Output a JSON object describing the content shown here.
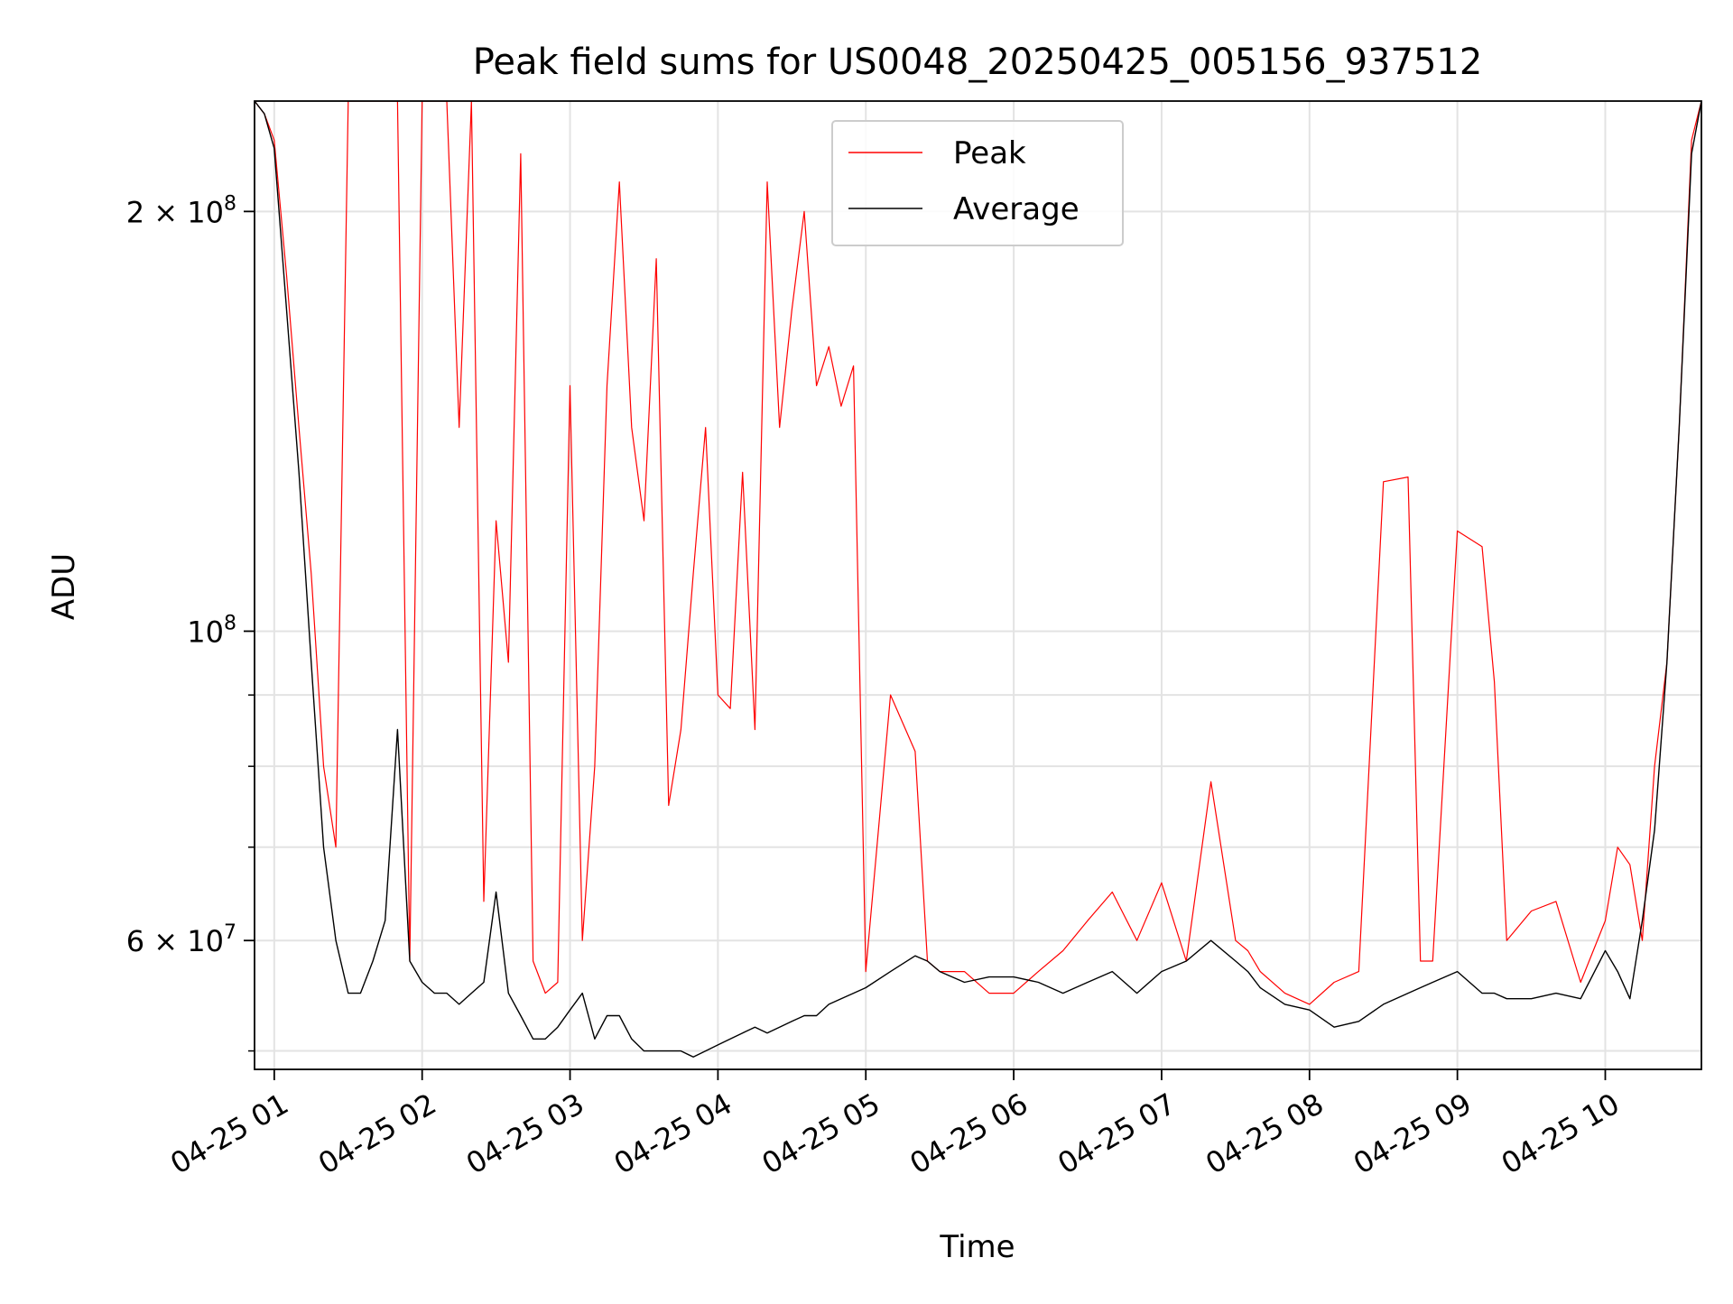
{
  "chart_data": {
    "type": "line",
    "title": "Peak field sums for US0048_20250425_005156_937512",
    "xlabel": "Time",
    "ylabel": "ADU",
    "x_ticks": [
      "04-25 01",
      "04-25 02",
      "04-25 03",
      "04-25 04",
      "04-25 05",
      "04-25 06",
      "04-25 07",
      "04-25 08",
      "04-25 09",
      "04-25 10"
    ],
    "y_scale": "log",
    "y_ticks": [
      {
        "value": 60000000,
        "base": "6",
        "exp": "7",
        "mult": true
      },
      {
        "value": 100000000,
        "base": "",
        "exp": "8",
        "mult": false
      },
      {
        "value": 200000000,
        "base": "2",
        "exp": "8",
        "mult": true
      }
    ],
    "y_minor_ticks": [
      50000000,
      70000000,
      80000000,
      90000000
    ],
    "xlim": [
      "2025-04-25 00:52",
      "2025-04-25 10:39"
    ],
    "ylim": [
      48500000,
      240000000
    ],
    "grid": true,
    "legend": {
      "position": "top-center",
      "entries": [
        "Peak",
        "Average"
      ]
    },
    "series": [
      {
        "name": "Peak",
        "color": "#ff0000",
        "x": [
          "00:52",
          "00:56",
          "01:00",
          "01:05",
          "01:10",
          "01:15",
          "01:20",
          "01:25",
          "01:30",
          "01:35",
          "01:40",
          "01:45",
          "01:50",
          "01:55",
          "02:00",
          "02:05",
          "02:10",
          "02:15",
          "02:20",
          "02:25",
          "02:30",
          "02:35",
          "02:40",
          "02:45",
          "02:50",
          "02:55",
          "03:00",
          "03:05",
          "03:10",
          "03:15",
          "03:20",
          "03:25",
          "03:30",
          "03:35",
          "03:40",
          "03:45",
          "03:50",
          "03:55",
          "04:00",
          "04:05",
          "04:10",
          "04:15",
          "04:20",
          "04:25",
          "04:30",
          "04:35",
          "04:40",
          "04:45",
          "04:50",
          "04:55",
          "05:00",
          "05:10",
          "05:20",
          "05:25",
          "05:30",
          "05:40",
          "05:50",
          "06:00",
          "06:10",
          "06:20",
          "06:30",
          "06:40",
          "06:50",
          "07:00",
          "07:10",
          "07:20",
          "07:30",
          "07:35",
          "07:40",
          "07:50",
          "08:00",
          "08:10",
          "08:20",
          "08:30",
          "08:40",
          "08:45",
          "08:50",
          "09:00",
          "09:10",
          "09:15",
          "09:20",
          "09:30",
          "09:40",
          "09:50",
          "10:00",
          "10:05",
          "10:10",
          "10:15",
          "10:20",
          "10:25",
          "10:30",
          "10:35",
          "10:39"
        ],
        "y": [
          240000000,
          235000000,
          225000000,
          180000000,
          140000000,
          110000000,
          80000000,
          70000000,
          240000000,
          240000000,
          240000000,
          240000000,
          240000000,
          58000000,
          240000000,
          240000000,
          240000000,
          140000000,
          240000000,
          64000000,
          120000000,
          95000000,
          220000000,
          58000000,
          55000000,
          56000000,
          150000000,
          60000000,
          80000000,
          150000000,
          210000000,
          140000000,
          120000000,
          185000000,
          75000000,
          85000000,
          110000000,
          140000000,
          90000000,
          88000000,
          130000000,
          85000000,
          210000000,
          140000000,
          170000000,
          200000000,
          150000000,
          160000000,
          145000000,
          155000000,
          57000000,
          90000000,
          82000000,
          58000000,
          57000000,
          57000000,
          55000000,
          55000000,
          57000000,
          59000000,
          62000000,
          65000000,
          60000000,
          66000000,
          58000000,
          78000000,
          60000000,
          59000000,
          57000000,
          55000000,
          54000000,
          56000000,
          57000000,
          128000000,
          129000000,
          58000000,
          58000000,
          118000000,
          115000000,
          92000000,
          60000000,
          63000000,
          64000000,
          56000000,
          62000000,
          70000000,
          68000000,
          60000000,
          80000000,
          95000000,
          140000000,
          225000000,
          240000000
        ]
      },
      {
        "name": "Average",
        "color": "#000000",
        "x": [
          "00:52",
          "00:56",
          "01:00",
          "01:05",
          "01:10",
          "01:15",
          "01:20",
          "01:25",
          "01:30",
          "01:35",
          "01:40",
          "01:45",
          "01:50",
          "01:55",
          "02:00",
          "02:05",
          "02:10",
          "02:15",
          "02:20",
          "02:25",
          "02:30",
          "02:35",
          "02:40",
          "02:45",
          "02:50",
          "02:55",
          "03:00",
          "03:05",
          "03:10",
          "03:15",
          "03:20",
          "03:25",
          "03:30",
          "03:35",
          "03:40",
          "03:45",
          "03:50",
          "03:55",
          "04:00",
          "04:05",
          "04:10",
          "04:15",
          "04:20",
          "04:25",
          "04:30",
          "04:35",
          "04:40",
          "04:45",
          "04:50",
          "04:55",
          "05:00",
          "05:10",
          "05:20",
          "05:25",
          "05:30",
          "05:40",
          "05:50",
          "06:00",
          "06:10",
          "06:20",
          "06:30",
          "06:40",
          "06:50",
          "07:00",
          "07:10",
          "07:20",
          "07:30",
          "07:35",
          "07:40",
          "07:50",
          "08:00",
          "08:10",
          "08:20",
          "08:30",
          "08:40",
          "08:45",
          "08:50",
          "09:00",
          "09:10",
          "09:15",
          "09:20",
          "09:30",
          "09:40",
          "09:50",
          "10:00",
          "10:05",
          "10:10",
          "10:15",
          "10:20",
          "10:25",
          "10:30",
          "10:35",
          "10:39"
        ],
        "y": [
          240000000,
          235000000,
          222000000,
          170000000,
          130000000,
          95000000,
          70000000,
          60000000,
          55000000,
          55000000,
          58000000,
          62000000,
          85000000,
          58000000,
          56000000,
          55000000,
          55000000,
          54000000,
          55000000,
          56000000,
          65000000,
          55000000,
          53000000,
          51000000,
          51000000,
          52000000,
          53500000,
          55000000,
          51000000,
          53000000,
          53000000,
          51000000,
          50000000,
          50000000,
          50000000,
          50000000,
          49500000,
          50000000,
          50500000,
          51000000,
          51500000,
          52000000,
          51500000,
          52000000,
          52500000,
          53000000,
          53000000,
          54000000,
          54500000,
          55000000,
          55500000,
          57000000,
          58500000,
          58000000,
          57000000,
          56000000,
          56500000,
          56500000,
          56000000,
          55000000,
          56000000,
          57000000,
          55000000,
          57000000,
          58000000,
          60000000,
          58000000,
          57000000,
          55500000,
          54000000,
          53500000,
          52000000,
          52500000,
          54000000,
          55000000,
          55500000,
          56000000,
          57000000,
          55000000,
          55000000,
          54500000,
          54500000,
          55000000,
          54500000,
          59000000,
          57000000,
          54500000,
          62000000,
          72000000,
          95000000,
          140000000,
          220000000,
          240000000
        ]
      }
    ]
  }
}
